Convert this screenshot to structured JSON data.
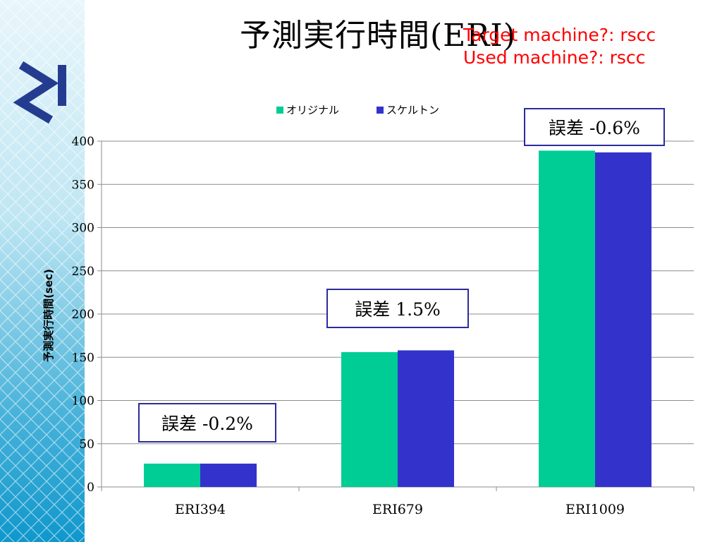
{
  "slide": {
    "title": "予測実行時間(ERI)",
    "machine_note": [
      "Target machine?: rscc",
      "Used machine?: rscc"
    ],
    "error_boxes": [
      "誤差 -0.2%",
      "誤差 1.5%",
      "誤差 -0.6%"
    ]
  },
  "colors": {
    "original": "#00cc95",
    "skeleton": "#3333cc",
    "accent_red": "#ff0000",
    "box_border": "#2b2c9c"
  },
  "chart_data": {
    "type": "bar",
    "categories": [
      "ERI394",
      "ERI679",
      "ERI1009"
    ],
    "series": [
      {
        "name": "オリジナル",
        "values": [
          27,
          156,
          389
        ]
      },
      {
        "name": "スケルトン",
        "values": [
          27,
          158,
          387
        ]
      }
    ],
    "ylabel": "予測実行時間(sec)",
    "ylim": [
      0,
      400
    ],
    "yticks": [
      0,
      50,
      100,
      150,
      200,
      250,
      300,
      350,
      400
    ],
    "grid": true,
    "legend": "top-center"
  }
}
